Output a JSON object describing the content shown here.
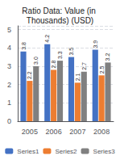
{
  "chart_data": {
    "type": "bar",
    "title": "Ratio Data: Value (in Thousands) (USD)",
    "categories": [
      "2005",
      "2006",
      "2007",
      "2008"
    ],
    "series": [
      {
        "name": "Series1",
        "color": "#4472c4",
        "values": [
          3.8,
          4.2,
          3.5,
          3.9
        ],
        "value_labels": [
          "3.8",
          "4.2",
          "3.5",
          "3.9"
        ]
      },
      {
        "name": "Series2",
        "color": "#ed7d31",
        "values": [
          2.2,
          2.8,
          2.1,
          2.5
        ],
        "value_labels": [
          "2.2",
          "2.8",
          "2.1",
          "2.5"
        ]
      },
      {
        "name": "Series3",
        "color": "#808080",
        "values": [
          3.0,
          3.3,
          2.7,
          3.2
        ],
        "value_labels": [
          "3.0",
          "3.3",
          "2.7",
          "3.2"
        ]
      }
    ],
    "ylim": [
      0,
      5.2
    ],
    "yticks": [
      0,
      1,
      2,
      3,
      4,
      5
    ],
    "grid": true,
    "legend": "bottom",
    "data_labels": true
  }
}
